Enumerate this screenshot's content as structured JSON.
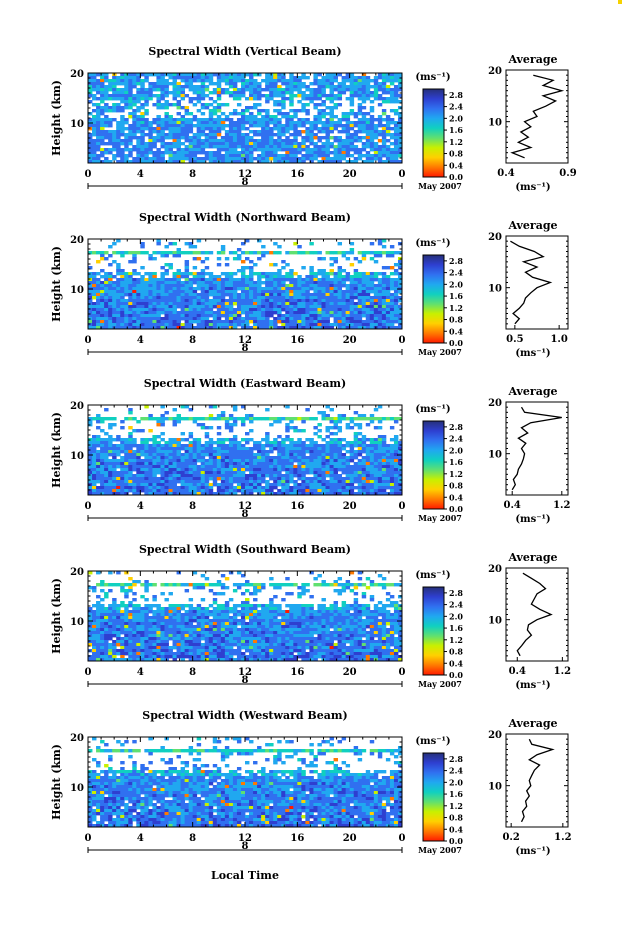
{
  "figure": {
    "xlabel": "Local Time",
    "date_label": "May 2007",
    "day_label": "8",
    "height_axis_label": "Height (km)",
    "average_title": "Average",
    "unit_label": "(ms⁻¹)"
  },
  "colorbar": {
    "ticks": [
      "2.8",
      "2.4",
      "2.0",
      "1.6",
      "1.2",
      "0.8",
      "0.4",
      "0.0"
    ],
    "stops": [
      "#ff1a00",
      "#ff7a00",
      "#ffd000",
      "#c8f000",
      "#60e070",
      "#10d0c0",
      "#20a8f0",
      "#3070f0",
      "#2e3fd0",
      "#26307a"
    ],
    "range": [
      0.0,
      3.0
    ]
  },
  "chart_data": [
    {
      "type": "heatmap",
      "title": "Spectral Width (Vertical Beam)",
      "xticks": [
        "0",
        "4",
        "8",
        "12",
        "16",
        "20",
        "0"
      ],
      "xlim": [
        0,
        24
      ],
      "yticks": [
        "20",
        "10"
      ],
      "ylim": [
        2,
        20
      ],
      "colorbar_ticks": [
        "2.8",
        "2.4",
        "2.0",
        "1.6",
        "1.2",
        "0.8",
        "0.4",
        "0.0"
      ],
      "profile": {
        "title": "Average",
        "xticks": [
          "0.4",
          "0.9"
        ],
        "xlim": [
          0.4,
          0.9
        ],
        "yticks": [
          "20",
          "10"
        ],
        "ylim": [
          2,
          20
        ],
        "height_km": [
          3,
          4,
          5,
          6,
          7,
          8,
          9,
          10,
          11,
          12,
          13,
          14,
          15,
          16,
          17,
          18,
          19
        ],
        "width_ms": [
          0.55,
          0.45,
          0.6,
          0.5,
          0.58,
          0.52,
          0.6,
          0.55,
          0.65,
          0.62,
          0.72,
          0.8,
          0.7,
          0.85,
          0.7,
          0.78,
          0.62
        ]
      }
    },
    {
      "type": "heatmap",
      "title": "Spectral Width (Northward Beam)",
      "xticks": [
        "0",
        "4",
        "8",
        "12",
        "16",
        "20",
        "0"
      ],
      "xlim": [
        0,
        24
      ],
      "yticks": [
        "20",
        "10"
      ],
      "ylim": [
        2,
        20
      ],
      "colorbar_ticks": [
        "2.8",
        "2.4",
        "2.0",
        "1.6",
        "1.2",
        "0.8",
        "0.4",
        "0.0"
      ],
      "profile": {
        "title": "Average",
        "xticks": [
          "0.5",
          "1.0"
        ],
        "xlim": [
          0.4,
          1.1
        ],
        "yticks": [
          "20",
          "10"
        ],
        "ylim": [
          2,
          20
        ],
        "height_km": [
          3,
          4,
          5,
          6,
          7,
          8,
          9,
          10,
          11,
          12,
          13,
          14,
          15,
          16,
          17,
          18,
          19
        ],
        "width_ms": [
          0.5,
          0.55,
          0.48,
          0.55,
          0.6,
          0.62,
          0.68,
          0.75,
          0.9,
          0.7,
          0.62,
          0.75,
          0.6,
          0.82,
          0.72,
          0.55,
          0.45
        ]
      }
    },
    {
      "type": "heatmap",
      "title": "Spectral Width (Eastward Beam)",
      "xticks": [
        "0",
        "4",
        "8",
        "12",
        "16",
        "20",
        "0"
      ],
      "xlim": [
        0,
        24
      ],
      "yticks": [
        "20",
        "10"
      ],
      "ylim": [
        2,
        20
      ],
      "colorbar_ticks": [
        "2.8",
        "2.4",
        "2.0",
        "1.6",
        "1.2",
        "0.8",
        "0.4",
        "0.0"
      ],
      "profile": {
        "title": "Average",
        "xticks": [
          "0.4",
          "1.2"
        ],
        "xlim": [
          0.3,
          1.3
        ],
        "yticks": [
          "20",
          "10"
        ],
        "ylim": [
          2,
          20
        ],
        "height_km": [
          3,
          4,
          5,
          6,
          7,
          8,
          9,
          10,
          11,
          12,
          13,
          14,
          15,
          16,
          17,
          18,
          19
        ],
        "width_ms": [
          0.4,
          0.45,
          0.42,
          0.48,
          0.5,
          0.55,
          0.58,
          0.6,
          0.55,
          0.62,
          0.5,
          0.65,
          0.55,
          0.7,
          1.2,
          0.6,
          0.55
        ]
      }
    },
    {
      "type": "heatmap",
      "title": "Spectral Width (Southward Beam)",
      "xticks": [
        "0",
        "4",
        "8",
        "12",
        "16",
        "20",
        "0"
      ],
      "xlim": [
        0,
        24
      ],
      "yticks": [
        "20",
        "10"
      ],
      "ylim": [
        2,
        20
      ],
      "colorbar_ticks": [
        "2.8",
        "2.4",
        "2.0",
        "1.6",
        "1.2",
        "0.8",
        "0.4",
        "0.0"
      ],
      "profile": {
        "title": "Average",
        "xticks": [
          "0.4",
          "1.2"
        ],
        "xlim": [
          0.2,
          1.3
        ],
        "yticks": [
          "20",
          "10"
        ],
        "ylim": [
          2,
          20
        ],
        "height_km": [
          3,
          4,
          5,
          6,
          7,
          8,
          9,
          10,
          11,
          12,
          13,
          14,
          15,
          16,
          17,
          18,
          19
        ],
        "width_ms": [
          0.45,
          0.4,
          0.48,
          0.55,
          0.65,
          0.58,
          0.6,
          0.75,
          1.0,
          0.8,
          0.65,
          0.7,
          0.75,
          0.9,
          0.8,
          0.65,
          0.5
        ]
      }
    },
    {
      "type": "heatmap",
      "title": "Spectral Width (Westward Beam)",
      "xticks": [
        "0",
        "4",
        "8",
        "12",
        "16",
        "20",
        "0"
      ],
      "xlim": [
        0,
        24
      ],
      "yticks": [
        "20",
        "10"
      ],
      "ylim": [
        2,
        20
      ],
      "colorbar_ticks": [
        "2.8",
        "2.4",
        "2.0",
        "1.6",
        "1.2",
        "0.8",
        "0.4",
        "0.0"
      ],
      "profile": {
        "title": "Average",
        "xticks": [
          "0.2",
          "1.2"
        ],
        "xlim": [
          0.1,
          1.3
        ],
        "yticks": [
          "20",
          "10"
        ],
        "ylim": [
          2,
          20
        ],
        "height_km": [
          3,
          4,
          5,
          6,
          7,
          8,
          9,
          10,
          11,
          12,
          13,
          14,
          15,
          16,
          17,
          18,
          19
        ],
        "width_ms": [
          0.4,
          0.45,
          0.42,
          0.5,
          0.48,
          0.55,
          0.5,
          0.58,
          0.55,
          0.6,
          0.65,
          0.75,
          0.55,
          0.7,
          1.0,
          0.6,
          0.55
        ]
      }
    }
  ]
}
